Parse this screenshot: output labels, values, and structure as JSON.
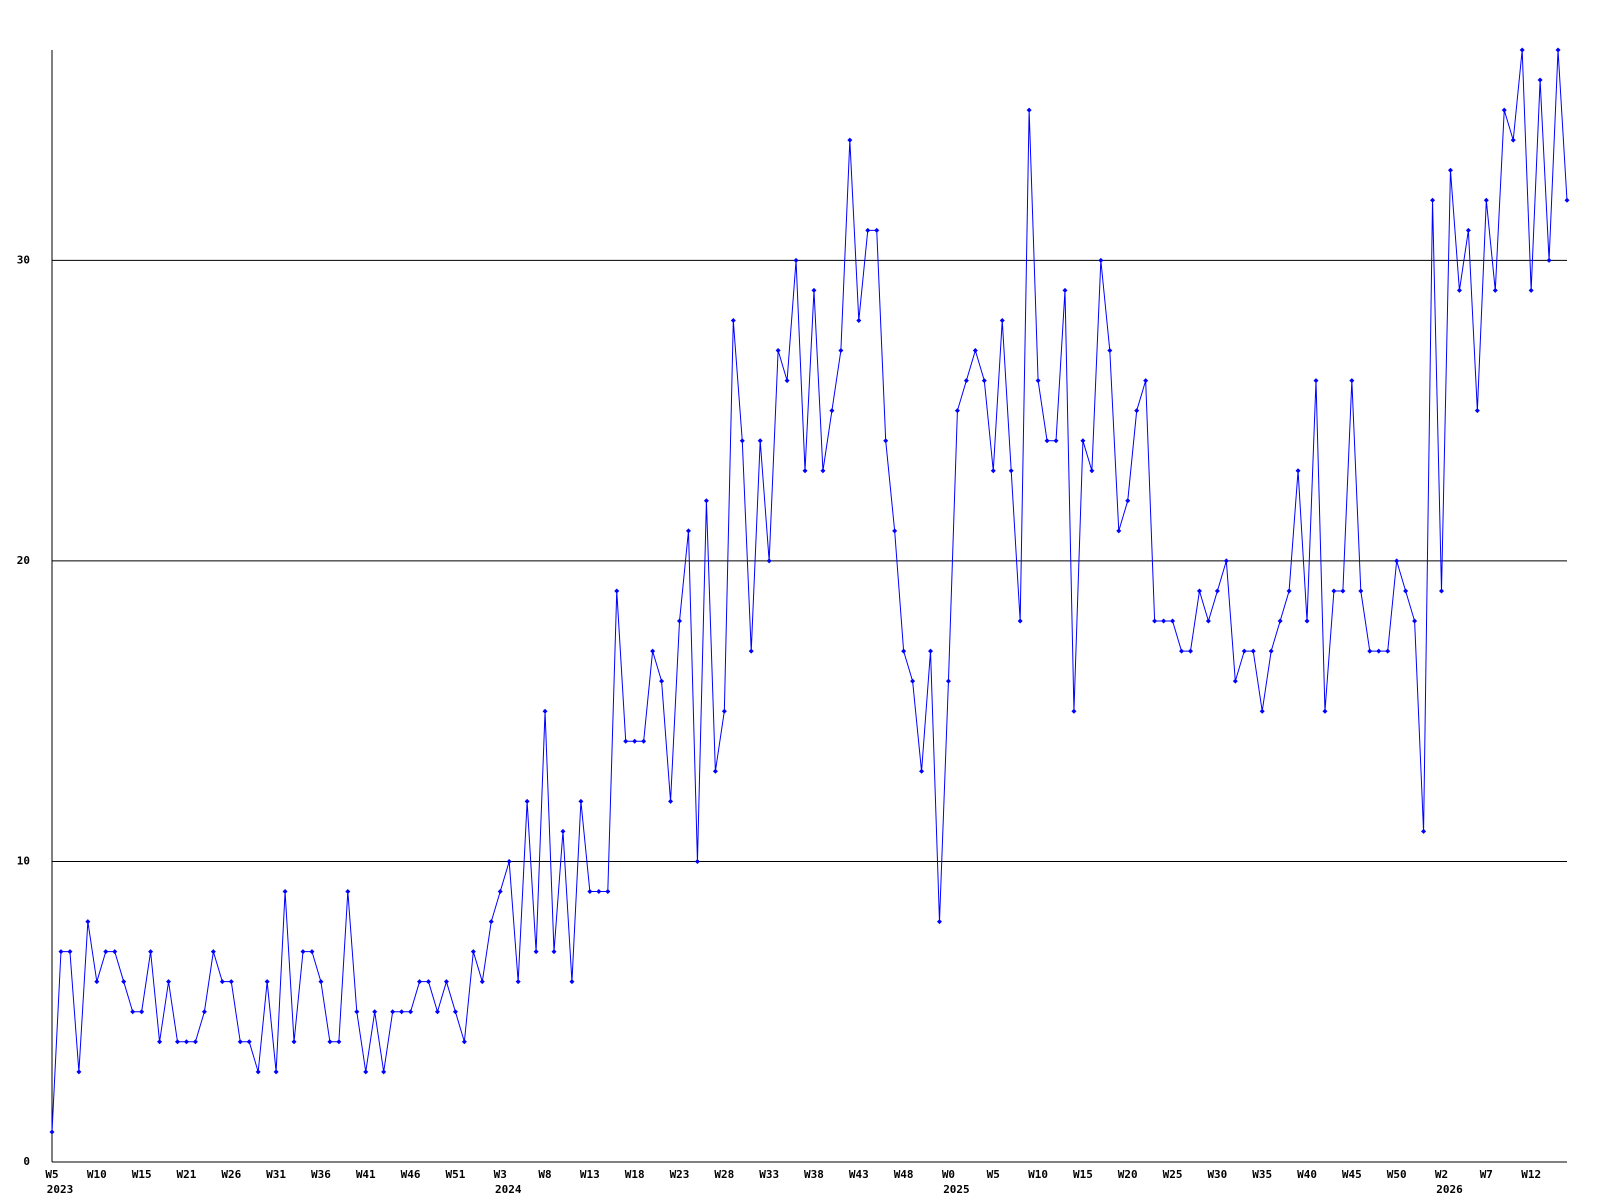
{
  "chart_data": {
    "type": "line",
    "color": "#0000ff",
    "grid": true,
    "ylim": [
      0,
      37
    ],
    "yticks": [
      0,
      10,
      20,
      30
    ],
    "categories": [
      "W5",
      null,
      null,
      null,
      null,
      "W10",
      null,
      null,
      null,
      null,
      "W15",
      null,
      null,
      null,
      null,
      "W21",
      null,
      null,
      null,
      null,
      "W26",
      null,
      null,
      null,
      null,
      "W31",
      null,
      null,
      null,
      null,
      "W36",
      null,
      null,
      null,
      null,
      "W41",
      null,
      null,
      null,
      null,
      "W46",
      null,
      null,
      null,
      null,
      "W51",
      null,
      null,
      null,
      null,
      "W3",
      null,
      null,
      null,
      null,
      "W8",
      null,
      null,
      null,
      null,
      "W13",
      null,
      null,
      null,
      null,
      "W18",
      null,
      null,
      null,
      null,
      "W23",
      null,
      null,
      null,
      null,
      "W28",
      null,
      null,
      null,
      null,
      "W33",
      null,
      null,
      null,
      null,
      "W38",
      null,
      null,
      null,
      null,
      "W43",
      null,
      null,
      null,
      null,
      "W48",
      null,
      null,
      null,
      null,
      "W0",
      null,
      null,
      null,
      null,
      "W5",
      null,
      null,
      null,
      null,
      "W10",
      null,
      null,
      null,
      null,
      "W15",
      null,
      null,
      null,
      null,
      "W20",
      null,
      null,
      null,
      null,
      "W25",
      null,
      null,
      null,
      null,
      "W30",
      null,
      null,
      null,
      null,
      "W35",
      null,
      null,
      null,
      null,
      "W40",
      null,
      null,
      null,
      null,
      "W45",
      null,
      null,
      null,
      null,
      "W50",
      null,
      null,
      null,
      null,
      "W2",
      null,
      null,
      null,
      null,
      "W7",
      null,
      null,
      null,
      null,
      "W12",
      null,
      null,
      null,
      null
    ],
    "years": [
      "2023",
      null,
      null,
      null,
      null,
      null,
      null,
      null,
      null,
      null,
      null,
      null,
      null,
      null,
      null,
      null,
      null,
      null,
      null,
      null,
      null,
      null,
      null,
      null,
      null,
      null,
      null,
      null,
      null,
      null,
      null,
      null,
      null,
      null,
      null,
      null,
      null,
      null,
      null,
      null,
      null,
      null,
      null,
      null,
      null,
      null,
      null,
      null,
      null,
      null,
      "2024",
      null,
      null,
      null,
      null,
      null,
      null,
      null,
      null,
      null,
      null,
      null,
      null,
      null,
      null,
      null,
      null,
      null,
      null,
      null,
      null,
      null,
      null,
      null,
      null,
      null,
      null,
      null,
      null,
      null,
      null,
      null,
      null,
      null,
      null,
      null,
      null,
      null,
      null,
      null,
      null,
      null,
      null,
      null,
      null,
      null,
      null,
      null,
      null,
      null,
      "2025",
      null,
      null,
      null,
      null,
      null,
      null,
      null,
      null,
      null,
      null,
      null,
      null,
      null,
      null,
      null,
      null,
      null,
      null,
      null,
      null,
      null,
      null,
      null,
      null,
      null,
      null,
      null,
      null,
      null,
      null,
      null,
      null,
      null,
      null,
      null,
      null,
      null,
      null,
      null,
      null,
      null,
      null,
      null,
      null,
      null,
      null,
      null,
      null,
      null,
      null,
      null,
      null,
      null,
      null,
      "2026",
      null,
      null,
      null,
      null,
      null,
      null,
      null,
      null,
      null,
      null,
      null,
      null,
      null,
      null
    ],
    "values": [
      1,
      7,
      7,
      3,
      8,
      6,
      7,
      7,
      6,
      5,
      5,
      7,
      4,
      6,
      4,
      4,
      4,
      5,
      7,
      6,
      6,
      4,
      4,
      3,
      6,
      3,
      9,
      4,
      7,
      7,
      6,
      4,
      4,
      9,
      5,
      3,
      5,
      3,
      5,
      5,
      5,
      6,
      6,
      5,
      6,
      5,
      4,
      7,
      6,
      8,
      9,
      10,
      6,
      12,
      7,
      15,
      7,
      11,
      6,
      12,
      9,
      9,
      9,
      19,
      14,
      14,
      14,
      17,
      16,
      12,
      18,
      21,
      10,
      22,
      13,
      15,
      28,
      24,
      17,
      24,
      20,
      27,
      26,
      30,
      23,
      29,
      23,
      25,
      27,
      34,
      28,
      31,
      31,
      24,
      21,
      17,
      16,
      13,
      17,
      8,
      16,
      25,
      26,
      27,
      26,
      23,
      28,
      23,
      18,
      35,
      26,
      24,
      24,
      29,
      15,
      24,
      23,
      30,
      27,
      21,
      22,
      25,
      26,
      18,
      18,
      18,
      17,
      17,
      19,
      18,
      19,
      20,
      16,
      17,
      17,
      15,
      17,
      18,
      19,
      23,
      18,
      26,
      15,
      19,
      19,
      26,
      19,
      17,
      17,
      17,
      20,
      19,
      18,
      11,
      32,
      19,
      33,
      29,
      31,
      25,
      32,
      29,
      35,
      34,
      37,
      29,
      36,
      30,
      37,
      32
    ]
  }
}
